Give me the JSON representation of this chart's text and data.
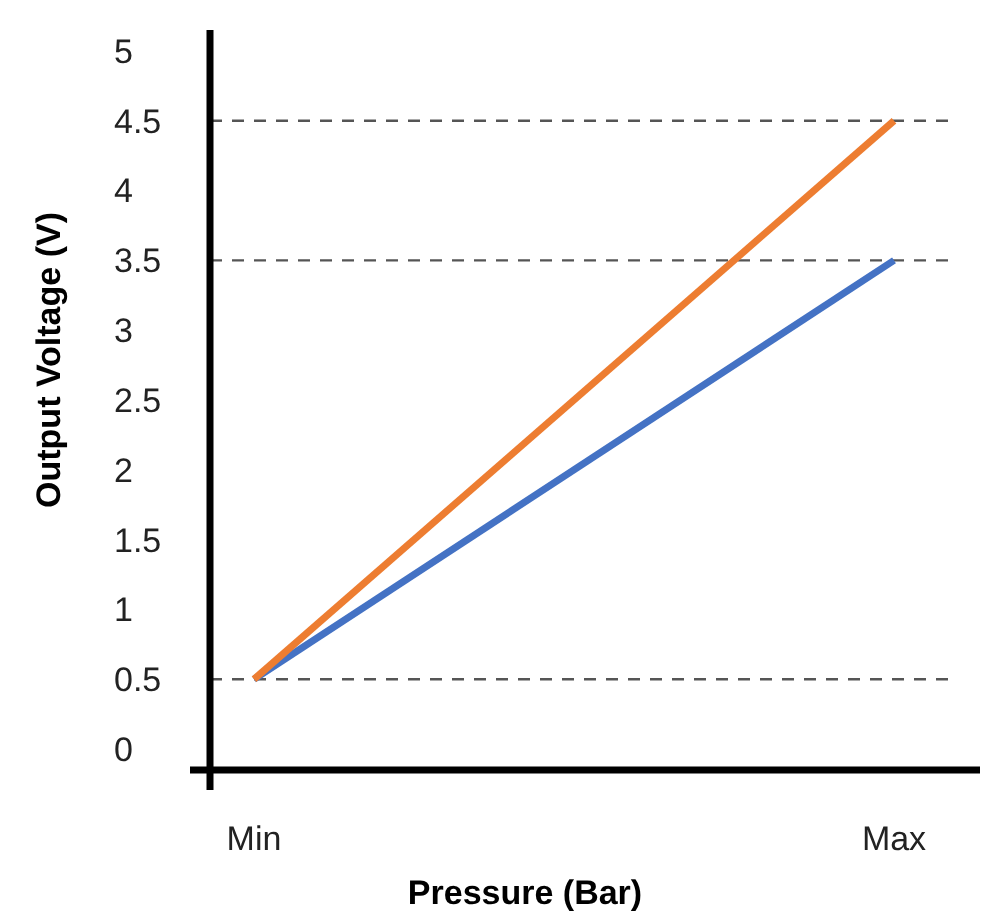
{
  "chart_data": {
    "type": "line",
    "xlabel": "Pressure (Bar)",
    "ylabel": "Output Voltage (V)",
    "categories": [
      "Min",
      "Max"
    ],
    "series": [
      {
        "color": "#4472c4",
        "values": [
          0.5,
          3.5
        ]
      },
      {
        "color": "#ed7d31",
        "values": [
          0.5,
          4.5
        ]
      }
    ],
    "ylim": [
      -0.15,
      5.15
    ],
    "yticks": [
      0,
      0.5,
      1,
      1.5,
      2,
      2.5,
      3,
      3.5,
      4,
      4.5,
      5
    ],
    "grid": false,
    "marker": "none",
    "line_style": "solid",
    "ref_lines": [
      {
        "axis": "y",
        "value": 0.5,
        "color": "#555555",
        "line_style": "dashed"
      },
      {
        "axis": "y",
        "value": 3.5,
        "color": "#555555",
        "line_style": "dashed"
      },
      {
        "axis": "y",
        "value": 4.5,
        "color": "#555555",
        "line_style": "dashed"
      }
    ]
  }
}
